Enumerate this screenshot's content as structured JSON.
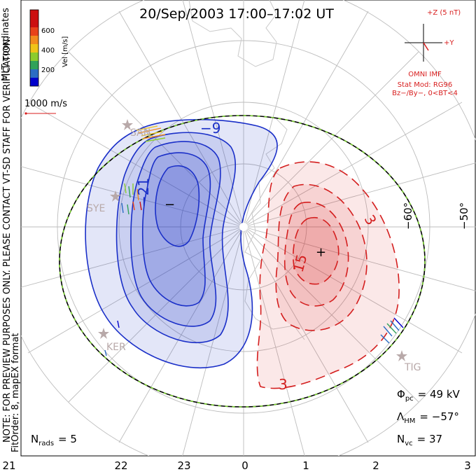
{
  "title": "20/Sep/2003 17:00–17:02 UT",
  "side_note": {
    "line1": "NOTE: FOR PREVIEW PURPOSES ONLY. PLEASE CONTACT VT-SD STAFF FOR VERIFICATION.",
    "line2": "FitOrder: 8, mapEX format"
  },
  "coords_label": "MLT coordinates",
  "colorbar": {
    "label": "Vel [m/s]",
    "ticks": [
      "600",
      "400",
      "200"
    ],
    "colors": [
      "#0000cc",
      "#2b6cc4",
      "#31a25a",
      "#8ccc2e",
      "#f0c419",
      "#f28c1e",
      "#e8431a",
      "#cc1010"
    ]
  },
  "scale_vector": {
    "label": "1000 m/s",
    "color": "#d81e1e"
  },
  "imf": {
    "top_label": "+Z (5 nT)",
    "side_label": "+Y",
    "source": "OMNI IMF",
    "model": "Stat Mod: RG96",
    "condition": "Bz−/By−, 0<BT<4",
    "color": "#d81e1e"
  },
  "contour_labels": {
    "dusk_outer": "−9",
    "dusk_inner": "−21",
    "dusk_min": "−",
    "dawn_outer_top": "3",
    "dawn_outer_bottom": "3",
    "dawn_inner": "15",
    "dawn_max": "+"
  },
  "colors": {
    "negative_cell": "#1a2fc8",
    "positive_cell": "#d41e1e",
    "boundary_dash": "#7ad030",
    "land": "#c9c9c9",
    "grid": "#bdbdbd",
    "radar": "#b8a9a9"
  },
  "lat_labels": [
    "−60°",
    "−50°"
  ],
  "radar_sites": [
    "SAN",
    "SYE",
    "KER",
    "TIG"
  ],
  "mlt_labels": [
    "21",
    "22",
    "23",
    "0",
    "1",
    "2",
    "3"
  ],
  "stats": {
    "phi_pc_symbol": "Φ",
    "phi_pc_sub": "pc",
    "phi_pc_value": "=  49 kV",
    "lambda_hm_symbol": "Λ",
    "lambda_hm_sub": "HM",
    "lambda_hm_value": "=  −57°",
    "n_vc_symbol": "N",
    "n_vc_sub": "vc",
    "n_vc_value": "=  37",
    "n_rads_symbol": "N",
    "n_rads_sub": "rads",
    "n_rads_value": "=  5"
  }
}
